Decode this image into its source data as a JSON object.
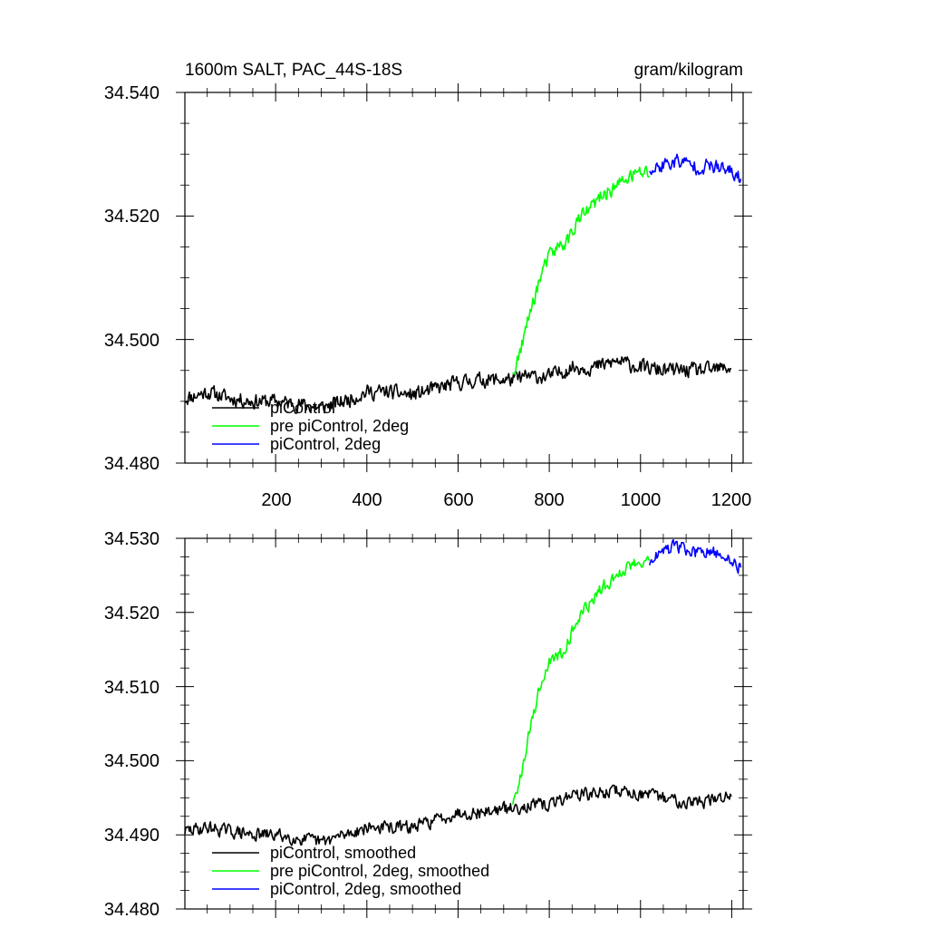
{
  "chart_data": [
    {
      "type": "line",
      "title": "1600m SALT, PAC_44S-18S",
      "units": "gram/kilogram",
      "xlim": [
        1,
        1225
      ],
      "ylim": [
        34.48,
        34.54
      ],
      "x_ticks": [
        200,
        400,
        600,
        800,
        1000,
        1200
      ],
      "x_tick_labels": [
        "200",
        "400",
        "600",
        "800",
        "1000",
        "1200"
      ],
      "y_ticks": [
        34.48,
        34.5,
        34.52,
        34.54
      ],
      "y_tick_labels": [
        "34.480",
        "34.500",
        "34.520",
        "34.540"
      ],
      "legend_position": "bottom-left",
      "series": [
        {
          "name": "piControl",
          "color": "#000000",
          "x": [
            1,
            50,
            100,
            150,
            200,
            250,
            300,
            350,
            400,
            450,
            500,
            550,
            600,
            650,
            700,
            720,
            750,
            800,
            850,
            900,
            950,
            1000,
            1050,
            1100,
            1150,
            1200
          ],
          "y": [
            34.4905,
            34.4915,
            34.4905,
            34.49,
            34.49,
            34.4895,
            34.489,
            34.49,
            34.4915,
            34.4915,
            34.491,
            34.492,
            34.493,
            34.4935,
            34.4935,
            34.4935,
            34.494,
            34.494,
            34.4955,
            34.4955,
            34.4965,
            34.4955,
            34.495,
            34.495,
            34.495,
            34.4955
          ]
        },
        {
          "name": "pre piControl, 2deg",
          "color": "#00ff00",
          "x": [
            720,
            740,
            760,
            780,
            800,
            820,
            840,
            860,
            880,
            900,
            920,
            940,
            960,
            980,
            1000,
            1020
          ],
          "y": [
            34.494,
            34.499,
            34.505,
            34.51,
            34.5135,
            34.515,
            34.516,
            34.519,
            34.5205,
            34.522,
            34.5235,
            34.5245,
            34.5255,
            34.5265,
            34.527,
            34.527
          ]
        },
        {
          "name": "piControl, 2deg",
          "color": "#0000ff",
          "x": [
            1020,
            1040,
            1060,
            1080,
            1100,
            1120,
            1140,
            1160,
            1180,
            1200,
            1220
          ],
          "y": [
            34.527,
            34.528,
            34.5285,
            34.529,
            34.5285,
            34.528,
            34.528,
            34.528,
            34.5275,
            34.527,
            34.526
          ]
        }
      ]
    },
    {
      "type": "line",
      "xlim": [
        1,
        1225
      ],
      "ylim": [
        34.48,
        34.53
      ],
      "x_ticks": [
        200,
        400,
        600,
        800,
        1000,
        1200
      ],
      "y_ticks": [
        34.48,
        34.49,
        34.5,
        34.51,
        34.52,
        34.53
      ],
      "y_tick_labels": [
        "34.480",
        "34.490",
        "34.500",
        "34.510",
        "34.520",
        "34.530"
      ],
      "legend_position": "bottom-left",
      "series": [
        {
          "name": "piControl, smoothed",
          "color": "#000000",
          "x": [
            1,
            50,
            100,
            150,
            200,
            250,
            300,
            350,
            400,
            450,
            500,
            550,
            600,
            650,
            700,
            720,
            750,
            800,
            850,
            900,
            950,
            1000,
            1050,
            1100,
            1150,
            1200
          ],
          "y": [
            34.4905,
            34.491,
            34.4905,
            34.49,
            34.49,
            34.4895,
            34.489,
            34.49,
            34.491,
            34.491,
            34.491,
            34.492,
            34.493,
            34.493,
            34.4935,
            34.4935,
            34.494,
            34.494,
            34.4955,
            34.4955,
            34.496,
            34.4955,
            34.495,
            34.4945,
            34.4945,
            34.4955
          ]
        },
        {
          "name": "pre piControl, 2deg, smoothed",
          "color": "#00ff00",
          "x": [
            720,
            740,
            760,
            780,
            800,
            820,
            840,
            860,
            880,
            900,
            920,
            940,
            960,
            980,
            1000,
            1020
          ],
          "y": [
            34.494,
            34.499,
            34.505,
            34.51,
            34.5135,
            34.514,
            34.516,
            34.519,
            34.5205,
            34.522,
            34.5235,
            34.5245,
            34.5255,
            34.5265,
            34.527,
            34.527
          ]
        },
        {
          "name": "piControl, 2deg, smoothed",
          "color": "#0000ff",
          "x": [
            1020,
            1040,
            1060,
            1080,
            1100,
            1120,
            1140,
            1160,
            1180,
            1200,
            1220
          ],
          "y": [
            34.527,
            34.528,
            34.5285,
            34.529,
            34.5285,
            34.528,
            34.528,
            34.528,
            34.5275,
            34.527,
            34.526
          ]
        }
      ]
    }
  ]
}
